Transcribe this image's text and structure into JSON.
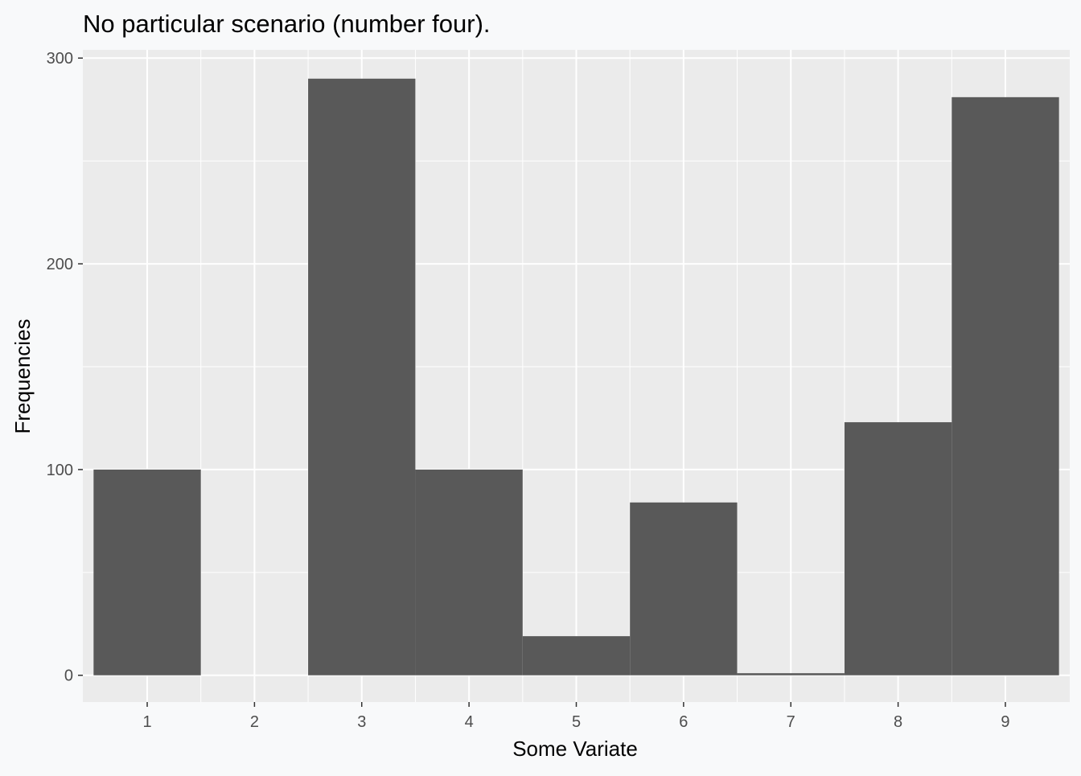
{
  "chart_data": {
    "type": "bar",
    "title": "No particular scenario (number four).",
    "xlabel": "Some Variate",
    "ylabel": "Frequencies",
    "categories": [
      "1",
      "2",
      "3",
      "4",
      "5",
      "6",
      "7",
      "8",
      "9"
    ],
    "values": [
      100,
      0,
      290,
      100,
      19,
      84,
      1,
      123,
      281
    ],
    "yticks": [
      "0",
      "100",
      "200",
      "300"
    ],
    "ylim": [
      -13,
      304
    ],
    "grid": true,
    "colors": {
      "bar": "#595959",
      "panel": "#ebebeb",
      "grid": "#ffffff",
      "background": "#f8f9fa"
    }
  }
}
